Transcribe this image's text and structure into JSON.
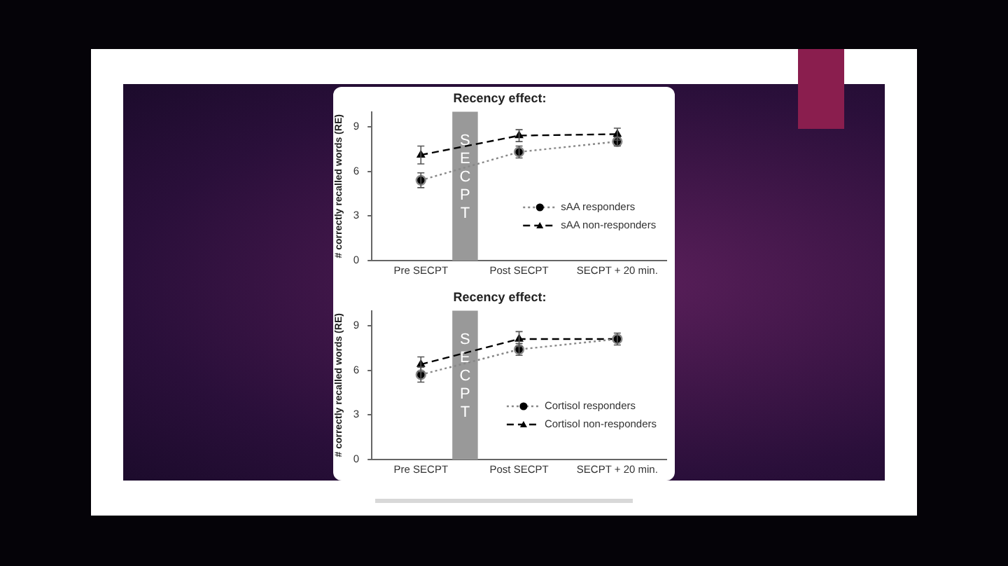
{
  "chart_data": [
    {
      "type": "line",
      "title": "Recency effect:",
      "ylabel": "# correctly recalled words (RE)",
      "categories": [
        "Pre SECPT",
        "Post SECPT",
        "SECPT + 20 min."
      ],
      "ylim": [
        0,
        10
      ],
      "yticks": [
        0,
        3,
        6,
        9
      ],
      "grid": false,
      "legend": "bottom right",
      "bands": [
        {
          "axis": "x",
          "from": "Pre SECPT",
          "to": "Post SECPT",
          "label": "SECPT",
          "color": "#999999"
        }
      ],
      "series": [
        {
          "name": "sAA responders",
          "color": "#000000",
          "marker": "circle",
          "line_style": "dotted",
          "values": [
            5.4,
            7.3,
            8.0
          ],
          "errors": [
            0.5,
            0.4,
            0.3
          ]
        },
        {
          "name": "sAA non-responders",
          "color": "#000000",
          "marker": "triangle",
          "line_style": "dashed",
          "values": [
            7.1,
            8.4,
            8.5
          ],
          "errors": [
            0.6,
            0.4,
            0.4
          ]
        }
      ]
    },
    {
      "type": "line",
      "title": "Recency effect:",
      "ylabel": "# correctly recalled words (RE)",
      "categories": [
        "Pre SECPT",
        "Post SECPT",
        "SECPT + 20 min."
      ],
      "ylim": [
        0,
        10
      ],
      "yticks": [
        0,
        3,
        6,
        9
      ],
      "grid": false,
      "legend": "bottom right",
      "bands": [
        {
          "axis": "x",
          "from": "Pre SECPT",
          "to": "Post SECPT",
          "label": "SECPT",
          "color": "#999999"
        }
      ],
      "series": [
        {
          "name": "Cortisol responders",
          "color": "#000000",
          "marker": "circle",
          "line_style": "dotted",
          "values": [
            5.7,
            7.4,
            8.1
          ],
          "errors": [
            0.5,
            0.4,
            null
          ]
        },
        {
          "name": "Cortisol non-responders",
          "color": "#000000",
          "marker": "triangle",
          "line_style": "dashed",
          "values": [
            6.4,
            8.1,
            8.1
          ],
          "errors": [
            0.5,
            0.5,
            0.4
          ]
        }
      ]
    }
  ]
}
